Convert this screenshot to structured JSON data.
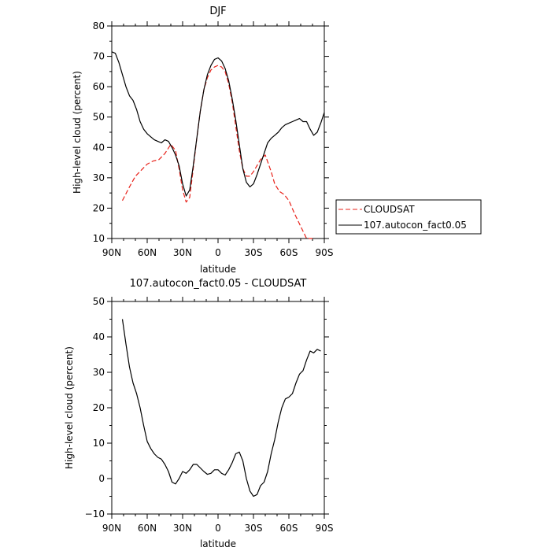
{
  "chart_data": [
    {
      "type": "line",
      "title": "DJF",
      "xlabel": "latitude",
      "ylabel": "High-level cloud (percent)",
      "xlim": [
        90,
        -90
      ],
      "ylim": [
        10,
        80
      ],
      "xticks": [
        90,
        60,
        30,
        0,
        -30,
        -60,
        -90
      ],
      "xticklabels": [
        "90N",
        "60N",
        "30N",
        "0",
        "30S",
        "60S",
        "90S"
      ],
      "yticks": [
        10,
        20,
        30,
        40,
        50,
        60,
        70,
        80
      ],
      "yticklabels": [
        "10",
        "20",
        "30",
        "40",
        "50",
        "60",
        "70",
        "80"
      ],
      "legend_position": "right",
      "series": [
        {
          "name": "CLOUDSAT",
          "color": "#e8221a",
          "dash": "dashed",
          "x": [
            81,
            75,
            70,
            65,
            60,
            55,
            50,
            45,
            40,
            36,
            33,
            30,
            27,
            24,
            21,
            18,
            15,
            12,
            9,
            6,
            3,
            0,
            -3,
            -6,
            -9,
            -12,
            -15,
            -18,
            -21,
            -24,
            -27,
            -30,
            -33,
            -36,
            -40,
            -45,
            -48,
            -52,
            -56,
            -60,
            -65,
            -70,
            -75,
            -80
          ],
          "y": [
            22.5,
            27,
            30.5,
            32.5,
            34.5,
            35.5,
            36,
            38,
            41,
            39,
            33,
            26,
            22,
            23.5,
            33,
            43,
            52,
            59,
            63,
            65.5,
            66.5,
            67,
            66.5,
            65,
            61,
            55,
            47,
            39,
            33,
            30.5,
            30.5,
            32,
            34,
            36,
            37.5,
            32,
            28,
            25.5,
            24.5,
            22.5,
            18,
            14,
            10,
            8
          ]
        },
        {
          "name": "107.autocon_fact0.05",
          "color": "#000000",
          "dash": "solid",
          "x": [
            90,
            87,
            84,
            81,
            78,
            75,
            72,
            69,
            66,
            63,
            60,
            57,
            54,
            51,
            48,
            45,
            42,
            39,
            36,
            33,
            30,
            27,
            24,
            21,
            18,
            15,
            12,
            9,
            6,
            3,
            0,
            -3,
            -6,
            -9,
            -12,
            -15,
            -18,
            -21,
            -24,
            -27,
            -30,
            -33,
            -36,
            -39,
            -42,
            -45,
            -48,
            -51,
            -54,
            -57,
            -60,
            -63,
            -66,
            -69,
            -72,
            -75,
            -78,
            -81,
            -84,
            -87,
            -90
          ],
          "y": [
            71.5,
            71,
            68,
            64,
            60,
            57,
            55.5,
            52.5,
            48.5,
            46,
            44.5,
            43.5,
            42.5,
            42,
            41.5,
            42.5,
            42,
            40,
            37.5,
            34,
            28,
            24,
            26,
            34,
            43,
            52,
            59,
            64,
            67,
            69,
            69.5,
            68.5,
            66,
            62,
            56,
            49,
            41,
            33,
            28.5,
            27,
            28,
            31,
            34.5,
            38,
            41.5,
            43,
            44,
            45,
            46.5,
            47.5,
            48,
            48.5,
            49,
            49.5,
            48.5,
            48.5,
            46,
            44,
            45,
            48,
            51.5
          ]
        }
      ]
    },
    {
      "type": "line",
      "title": "107.autocon_fact0.05 - CLOUDSAT",
      "xlabel": "latitude",
      "ylabel": "High-level cloud (percent)",
      "xlim": [
        90,
        -90
      ],
      "ylim": [
        -10,
        50
      ],
      "xticks": [
        90,
        60,
        30,
        0,
        -30,
        -60,
        -90
      ],
      "xticklabels": [
        "90N",
        "60N",
        "30N",
        "0",
        "30S",
        "60S",
        "90S"
      ],
      "yticks": [
        -10,
        0,
        10,
        20,
        30,
        40,
        50
      ],
      "yticklabels": [
        "−10",
        "0",
        "10",
        "20",
        "30",
        "40",
        "50"
      ],
      "series": [
        {
          "name": "",
          "color": "#000000",
          "dash": "solid",
          "x": [
            81,
            78,
            75,
            72,
            69,
            66,
            63,
            60,
            57,
            54,
            51,
            48,
            45,
            42,
            39,
            36,
            33,
            30,
            27,
            24,
            21,
            18,
            15,
            12,
            9,
            6,
            3,
            0,
            -3,
            -6,
            -9,
            -12,
            -15,
            -18,
            -21,
            -24,
            -27,
            -30,
            -33,
            -36,
            -39,
            -42,
            -45,
            -48,
            -51,
            -54,
            -57,
            -60,
            -63,
            -66,
            -69,
            -72,
            -75,
            -78,
            -81,
            -84,
            -87
          ],
          "y": [
            45,
            38,
            31.5,
            27,
            24,
            20,
            15,
            10.5,
            8.5,
            7,
            6,
            5.5,
            4,
            2,
            -1,
            -1.5,
            0,
            2,
            1.5,
            2.5,
            4,
            4,
            3,
            2,
            1.2,
            1.5,
            2.5,
            2.5,
            1.5,
            1,
            2.5,
            4.5,
            7,
            7.5,
            5,
            0,
            -3.5,
            -5,
            -4.5,
            -2,
            -1,
            2,
            7,
            11,
            16,
            20,
            22.5,
            23,
            24,
            27,
            29.5,
            30.5,
            33.5,
            36,
            35.5,
            36.5,
            36
          ]
        }
      ]
    }
  ]
}
